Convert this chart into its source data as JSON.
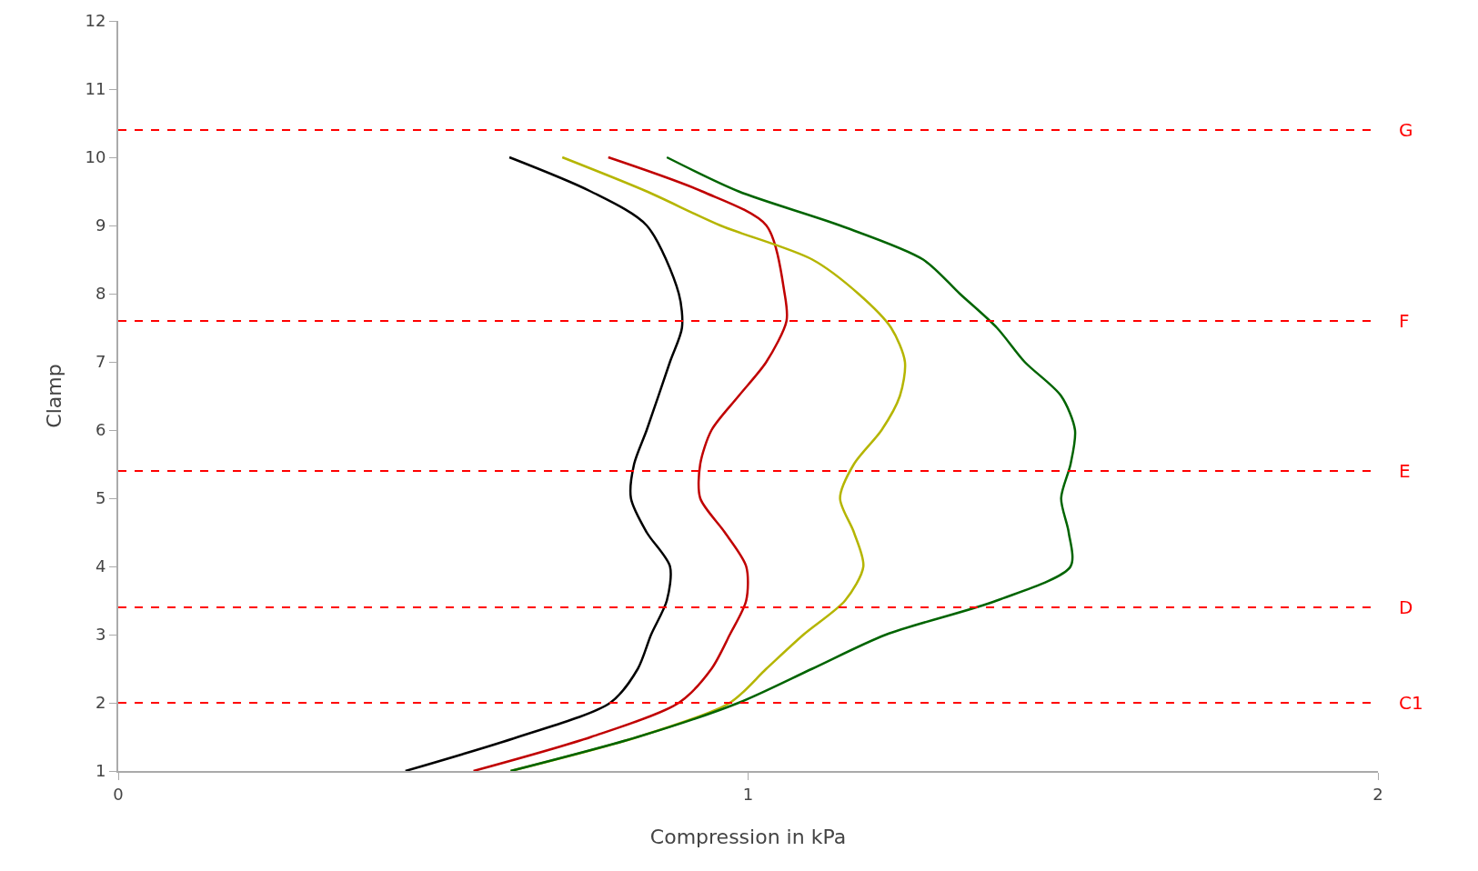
{
  "chart_data": {
    "type": "line",
    "xlabel": "Compression in kPa",
    "ylabel": "Clamp",
    "xlim": [
      0,
      2
    ],
    "xticks": [
      0,
      1,
      2
    ],
    "ylim": [
      1,
      12
    ],
    "yticks": [
      1,
      2,
      3,
      4,
      5,
      6,
      7,
      8,
      9,
      10,
      11,
      12
    ],
    "marker": "none",
    "line_style": "solid",
    "series": [
      {
        "color": "#000000",
        "x": [
          0.456,
          0.635,
          0.781,
          0.825,
          0.846,
          0.871,
          0.876,
          0.839,
          0.814,
          0.819,
          0.839,
          0.876,
          0.895,
          0.89,
          0.839,
          0.75,
          0.621
        ],
        "values": [
          1,
          1.5,
          2,
          2.5,
          3,
          3.5,
          4,
          4.5,
          5,
          5.5,
          6,
          7,
          7.5,
          8,
          9,
          9.5,
          10
        ]
      },
      {
        "color": "#c00000",
        "x": [
          0.564,
          0.751,
          0.89,
          0.942,
          0.971,
          0.997,
          0.997,
          0.963,
          0.924,
          0.924,
          0.942,
          0.985,
          1.029,
          1.061,
          1.058,
          1.029,
          0.927,
          0.778
        ],
        "values": [
          1,
          1.5,
          2,
          2.5,
          3,
          3.5,
          4,
          4.5,
          5,
          5.5,
          6,
          6.5,
          7,
          7.6,
          8,
          9,
          9.5,
          10
        ]
      },
      {
        "color": "#b5b500",
        "x": [
          0.623,
          0.825,
          0.971,
          1.029,
          1.088,
          1.154,
          1.183,
          1.168,
          1.146,
          1.168,
          1.212,
          1.241,
          1.249,
          1.227,
          1.175,
          1.102,
          0.956,
          0.839,
          0.705
        ],
        "values": [
          1,
          1.5,
          2,
          2.5,
          3,
          3.5,
          4,
          4.5,
          5,
          5.5,
          6,
          6.5,
          7,
          7.5,
          8,
          8.5,
          9,
          9.5,
          10
        ]
      },
      {
        "color": "#006400",
        "x": [
          0.623,
          0.825,
          0.985,
          1.102,
          1.219,
          1.395,
          1.512,
          1.509,
          1.497,
          1.512,
          1.519,
          1.497,
          1.439,
          1.395,
          1.336,
          1.278,
          1.146,
          0.985,
          0.871
        ],
        "values": [
          1,
          1.5,
          2,
          2.5,
          3,
          3.5,
          4,
          4.5,
          5,
          5.5,
          6,
          6.5,
          7,
          7.5,
          8,
          8.5,
          9,
          9.5,
          10
        ]
      }
    ],
    "ref_lines": [
      {
        "axis": "y",
        "value": 10.4,
        "label": "G",
        "color": "#ff0000",
        "line_style": "dashed"
      },
      {
        "axis": "y",
        "value": 7.6,
        "label": "F",
        "color": "#ff0000",
        "line_style": "dashed"
      },
      {
        "axis": "y",
        "value": 5.4,
        "label": "E",
        "color": "#ff0000",
        "line_style": "dashed"
      },
      {
        "axis": "y",
        "value": 3.4,
        "label": "D",
        "color": "#ff0000",
        "line_style": "dashed"
      },
      {
        "axis": "y",
        "value": 2.0,
        "label": "C1",
        "color": "#ff0000",
        "line_style": "dashed"
      }
    ]
  }
}
